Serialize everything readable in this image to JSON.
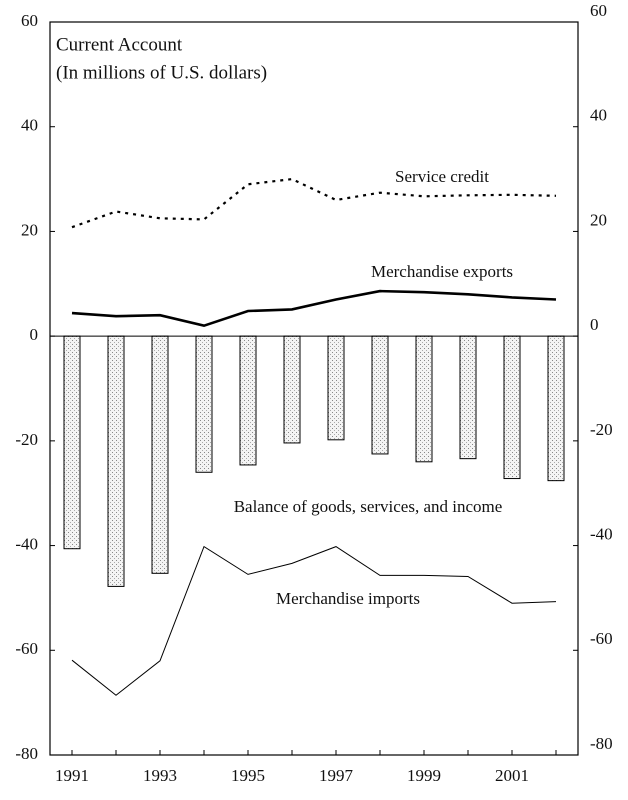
{
  "chart_data": {
    "type": "bar",
    "title": "Current Account",
    "subtitle": "(In millions of U.S. dollars)",
    "categories": [
      "1991",
      null,
      "1993",
      null,
      "1995",
      null,
      "1997",
      null,
      "1999",
      null,
      "2001",
      null
    ],
    "series": [
      {
        "name": "Balance of goods, services, and income",
        "type": "bar",
        "color": "#d8d8d8",
        "values": [
          -40.6,
          -47.8,
          -45.3,
          -26,
          -24.6,
          -20.4,
          -19.8,
          -22.5,
          -24,
          -23.4,
          -27.2,
          -27.6
        ]
      },
      {
        "name": "Service credit",
        "type": "line",
        "dash": "dotted",
        "color": "#000000",
        "values": [
          20.8,
          23.8,
          22.5,
          22.3,
          29,
          30,
          26,
          27.4,
          26.7,
          26.9,
          27,
          26.8
        ]
      },
      {
        "name": "Merchandise exports",
        "type": "line",
        "dash": "solid",
        "color": "#000000",
        "values": [
          4.4,
          3.8,
          4,
          2,
          4.8,
          5.1,
          7,
          8.6,
          8.4,
          8,
          7.4,
          7
        ]
      },
      {
        "name": "Merchandise imports",
        "type": "line",
        "dash": "thin",
        "color": "#000000",
        "values": [
          -61.9,
          -68.6,
          -62,
          -40.2,
          -45.5,
          -43.4,
          -40.2,
          -45.7,
          -45.7,
          -45.9,
          -51,
          -50.7
        ]
      }
    ],
    "ylim": [
      -80,
      60
    ],
    "yticks": [
      -80,
      -60,
      -40,
      -20,
      0,
      20,
      40,
      60
    ],
    "y2lim": [
      -80,
      60
    ],
    "y2ticks": [
      -80,
      -60,
      -40,
      -20,
      0,
      20,
      40,
      60
    ],
    "grid": false
  }
}
